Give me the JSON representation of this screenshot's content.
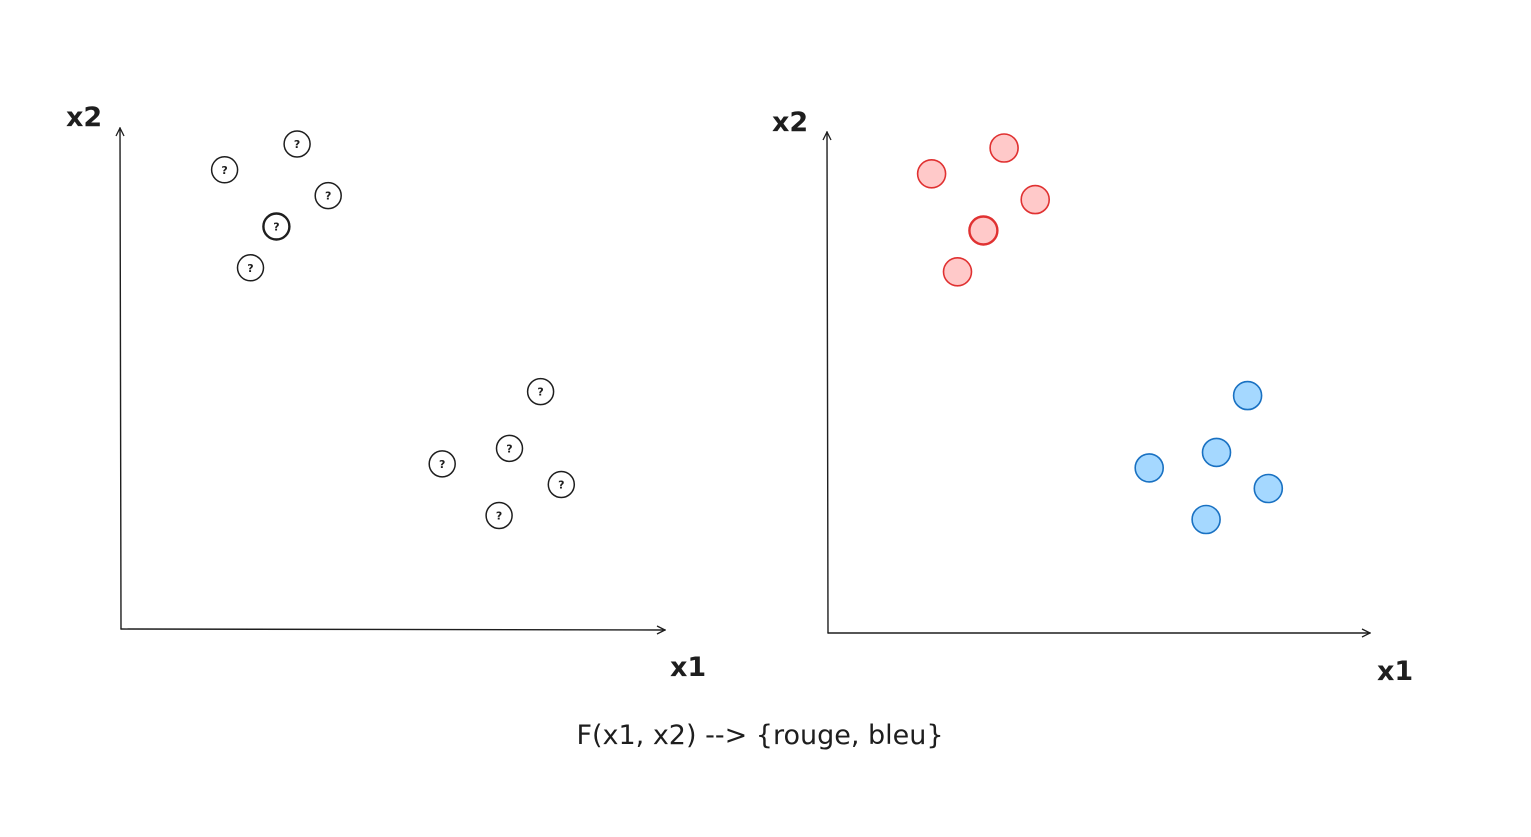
{
  "formula": "F(x1, x2) --> {rouge, bleu}",
  "colors": {
    "ink": "#1e1e1e",
    "red_fill": "#ffc9c9",
    "red_stroke": "#e03131",
    "blue_fill": "#a5d8ff",
    "blue_stroke": "#1971c2"
  },
  "panels": [
    {
      "id": "unlabeled",
      "x_axis_label": "x1",
      "y_axis_label": "x2",
      "point_marker": "?",
      "points": [
        {
          "x1": 2.0,
          "x2": 8.9,
          "class": "unknown"
        },
        {
          "x1": 3.4,
          "x2": 9.4,
          "class": "unknown"
        },
        {
          "x1": 4.0,
          "x2": 8.4,
          "class": "unknown"
        },
        {
          "x1": 3.0,
          "x2": 7.8,
          "class": "unknown"
        },
        {
          "x1": 2.5,
          "x2": 7.0,
          "class": "unknown"
        },
        {
          "x1": 8.1,
          "x2": 4.6,
          "class": "unknown"
        },
        {
          "x1": 7.5,
          "x2": 3.5,
          "class": "unknown"
        },
        {
          "x1": 6.2,
          "x2": 3.2,
          "class": "unknown"
        },
        {
          "x1": 8.5,
          "x2": 2.8,
          "class": "unknown"
        },
        {
          "x1": 7.3,
          "x2": 2.2,
          "class": "unknown"
        }
      ]
    },
    {
      "id": "labeled",
      "x_axis_label": "x1",
      "y_axis_label": "x2",
      "point_marker": "",
      "points": [
        {
          "x1": 2.0,
          "x2": 8.9,
          "class": "rouge"
        },
        {
          "x1": 3.4,
          "x2": 9.4,
          "class": "rouge"
        },
        {
          "x1": 4.0,
          "x2": 8.4,
          "class": "rouge"
        },
        {
          "x1": 3.0,
          "x2": 7.8,
          "class": "rouge"
        },
        {
          "x1": 2.5,
          "x2": 7.0,
          "class": "rouge"
        },
        {
          "x1": 8.1,
          "x2": 4.6,
          "class": "bleu"
        },
        {
          "x1": 7.5,
          "x2": 3.5,
          "class": "bleu"
        },
        {
          "x1": 6.2,
          "x2": 3.2,
          "class": "bleu"
        },
        {
          "x1": 8.5,
          "x2": 2.8,
          "class": "bleu"
        },
        {
          "x1": 7.3,
          "x2": 2.2,
          "class": "bleu"
        }
      ]
    }
  ]
}
